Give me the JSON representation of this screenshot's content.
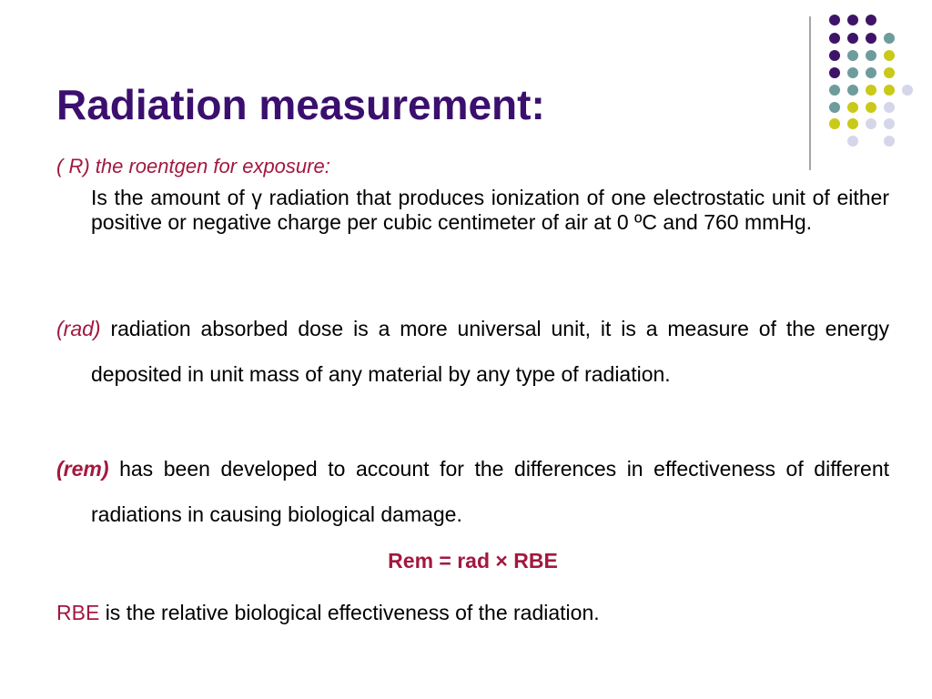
{
  "title": "Radiation measurement:",
  "roentgen": {
    "heading": "( R) the roentgen for exposure:",
    "body": "Is the amount of γ radiation that produces ionization of one electrostatic unit of either positive or negative charge per cubic centimeter of air at 0 ºC and 760 mmHg."
  },
  "rad": {
    "term": "(rad)",
    "text": "radiation absorbed dose is a more universal unit, it is a measure of the energy deposited in unit mass of any material by any type of radiation."
  },
  "rem": {
    "term": "(rem)",
    "text": "has been developed to account for the differences in effectiveness of different radiations in causing biological damage."
  },
  "formula": "Rem = rad × RBE",
  "rbe": {
    "term": "RBE",
    "text": "is the relative biological effectiveness of the radiation."
  }
}
